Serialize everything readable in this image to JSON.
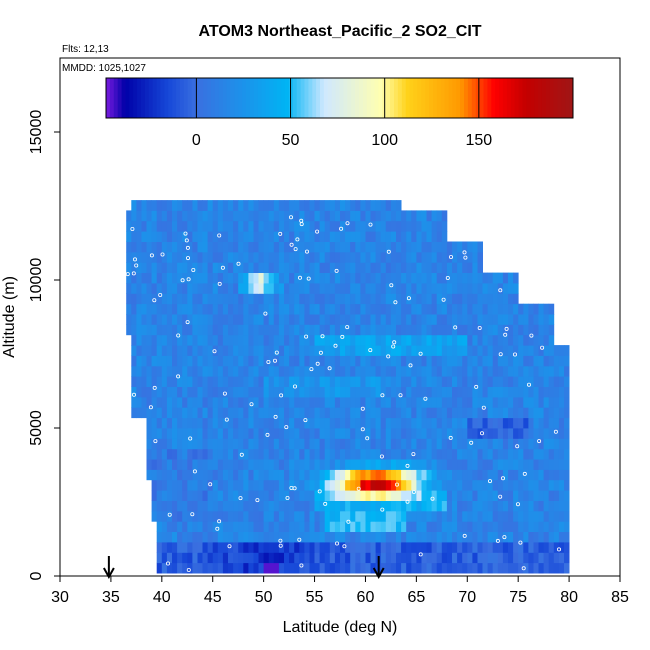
{
  "chart_data": {
    "type": "heatmap",
    "title": "ATOM3 Northeast_Pacific_2 SO2_CIT",
    "annotations": {
      "flights": "Flts: 12,13",
      "dates": "MMDD: 1025,1027"
    },
    "xlabel": "Latitude (deg N)",
    "ylabel": "Altitude (m)",
    "xlim": [
      30,
      85
    ],
    "ylim": [
      0,
      17500
    ],
    "x_ticks": [
      "30",
      "35",
      "40",
      "45",
      "50",
      "55",
      "60",
      "65",
      "70",
      "75",
      "80",
      "85"
    ],
    "y_ticks": [
      "0",
      "5000",
      "10000",
      "15000"
    ],
    "colorbar": {
      "range": [
        -48,
        200
      ],
      "tick_values": [
        0,
        50,
        100,
        150
      ],
      "tick_labels": [
        "0",
        "50",
        "100",
        "150"
      ],
      "palette": [
        "#7a1ce0",
        "#0000a8",
        "#1648d8",
        "#3a6fe0",
        "#00b4f4",
        "#cfe8ff",
        "#ffffb0",
        "#ffd21a",
        "#ff9900",
        "#ff0000",
        "#c40000",
        "#a01616"
      ]
    },
    "grid": false,
    "legend": "colorbar inside top",
    "value_color_example": {
      "background_level": 18,
      "plume_max": 190
    },
    "plume": {
      "lat_range": [
        56,
        67
      ],
      "alt_m": 3200,
      "peak_lat": 61,
      "peak_value": 190
    },
    "secondary_plume": {
      "lat_range": [
        48,
        51
      ],
      "alt_m": 9800,
      "peak_value": 75
    },
    "low_alt_minimum": {
      "lat": 50.5,
      "alt_m": 250,
      "value": -45
    },
    "profile_markers_lat": [
      34.8,
      61.3
    ]
  }
}
